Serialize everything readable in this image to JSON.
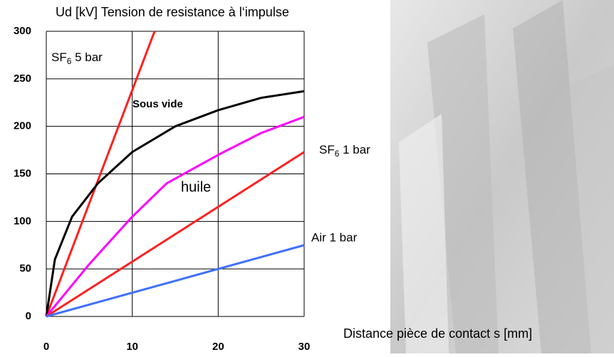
{
  "chart_data": {
    "type": "line",
    "title": "Ud [kV] Tension de resistance à l‘impulse",
    "x_label": "Distance pièce de contact s [mm]",
    "xlim": [
      0,
      30
    ],
    "xticks": [
      0,
      10,
      20,
      30
    ],
    "ylim": [
      0,
      300
    ],
    "yticks": [
      0,
      50,
      100,
      150,
      200,
      250,
      300
    ],
    "grid": true,
    "series": [
      {
        "name": "SF6 5 bar",
        "color": "#ff2020",
        "x": [
          0,
          12.6
        ],
        "values": [
          0,
          300
        ]
      },
      {
        "name": "Sous vide",
        "color": "#000000",
        "x": [
          0,
          1,
          3,
          6,
          10,
          15,
          20,
          25,
          30
        ],
        "values": [
          0,
          60,
          105,
          140,
          173,
          200,
          217,
          230,
          237
        ]
      },
      {
        "name": "huile",
        "color": "#ff00ff",
        "x": [
          0,
          5,
          10,
          14,
          20,
          25,
          30
        ],
        "values": [
          0,
          55,
          105,
          140,
          170,
          193,
          210
        ]
      },
      {
        "name": "SF6 1 bar",
        "color": "#ff2020",
        "x": [
          0,
          30
        ],
        "values": [
          0,
          173
        ]
      },
      {
        "name": "Air 1 bar",
        "color": "#4070ff",
        "x": [
          0,
          30
        ],
        "values": [
          0,
          75
        ]
      }
    ]
  }
}
